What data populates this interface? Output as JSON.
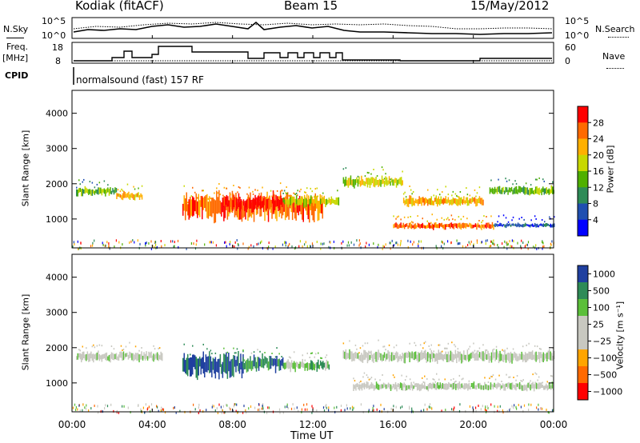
{
  "header": {
    "radar": "Kodiak (fitACF)",
    "beam": "Beam 15",
    "date": "15/May/2012"
  },
  "top_panels": {
    "nsky_label": "N.Sky",
    "nsearch_label": "N.Search",
    "freq_label_1": "Freq.",
    "freq_label_2": "[MHz]",
    "nave_label": "Nave",
    "cpid_label": "CPID",
    "noise_ticks_left": [
      "10^5",
      "10^0"
    ],
    "noise_ticks_right": [
      "10^5",
      "10^0"
    ],
    "freq_ticks_left": [
      "18",
      "8"
    ],
    "nave_ticks_right": [
      "60",
      "0"
    ],
    "cpid_text": "normalsound (fast) 157 RF"
  },
  "chart_data": [
    {
      "type": "heatmap",
      "name": "power",
      "ylabel": "Slant Range [km]",
      "ylim": [
        180,
        4650
      ],
      "yticks": [
        "4000",
        "3000",
        "2000",
        "1000"
      ],
      "xlim": [
        0,
        24
      ],
      "colorbar_label": "Power [dB]",
      "colorbar_ticks": [
        "28",
        "24",
        "20",
        "16",
        "12",
        "8",
        "4"
      ],
      "colors": [
        "#ff0000",
        "#ff6a00",
        "#ffb000",
        "#c8d800",
        "#4fb000",
        "#2e8b57",
        "#1f4fb0",
        "#0000ff"
      ],
      "bands": [
        {
          "t0": 0.2,
          "t1": 2.2,
          "r": 1780,
          "w": 160,
          "level": 4
        },
        {
          "t0": 2.2,
          "t1": 3.5,
          "r": 1650,
          "w": 150,
          "level": 2
        },
        {
          "t0": 5.5,
          "t1": 12.5,
          "r": 1350,
          "w": 500,
          "level": 1
        },
        {
          "t0": 7.5,
          "t1": 10.5,
          "r": 1450,
          "w": 300,
          "level": 0
        },
        {
          "t0": 10.5,
          "t1": 13.3,
          "r": 1500,
          "w": 180,
          "level": 3
        },
        {
          "t0": 13.5,
          "t1": 16.5,
          "r": 2050,
          "w": 200,
          "level": 3
        },
        {
          "t0": 16.5,
          "t1": 20.5,
          "r": 1500,
          "w": 180,
          "level": 2
        },
        {
          "t0": 20.8,
          "t1": 24.0,
          "r": 1800,
          "w": 160,
          "level": 4
        },
        {
          "t0": 16.0,
          "t1": 21.0,
          "r": 800,
          "w": 120,
          "level": 1
        },
        {
          "t0": 21.0,
          "t1": 24.0,
          "r": 820,
          "w": 80,
          "level": 6
        }
      ]
    },
    {
      "type": "heatmap",
      "name": "velocity",
      "ylabel": "Slant Range [km]",
      "ylim": [
        180,
        4650
      ],
      "yticks": [
        "4000",
        "3000",
        "2000",
        "1000"
      ],
      "xlim": [
        0,
        24
      ],
      "xticks": [
        "00:00",
        "04:00",
        "08:00",
        "12:00",
        "16:00",
        "20:00",
        "00:00"
      ],
      "xlabel": "Time UT",
      "colorbar_label": "Velocity [m s⁻¹]",
      "colorbar_ticks": [
        "1000",
        "500",
        "100",
        "25",
        "−25",
        "−100",
        "−500",
        "−1000"
      ],
      "colors": [
        "#1f3f9f",
        "#2e8b57",
        "#5bbf3a",
        "#c8c8c0",
        "#c8c8c0",
        "#ffa500",
        "#ff6a00",
        "#ff0000"
      ],
      "bands": [
        {
          "t0": 0.2,
          "t1": 4.5,
          "r": 1750,
          "w": 180,
          "level": 3
        },
        {
          "t0": 5.5,
          "t1": 8.5,
          "r": 1500,
          "w": 450,
          "level": 0
        },
        {
          "t0": 8.5,
          "t1": 10.5,
          "r": 1550,
          "w": 300,
          "level": 1
        },
        {
          "t0": 10.5,
          "t1": 12.8,
          "r": 1500,
          "w": 200,
          "level": 2
        },
        {
          "t0": 13.5,
          "t1": 24.0,
          "r": 1750,
          "w": 220,
          "level": 3
        },
        {
          "t0": 14.0,
          "t1": 24.0,
          "r": 900,
          "w": 150,
          "level": 3
        }
      ]
    }
  ]
}
